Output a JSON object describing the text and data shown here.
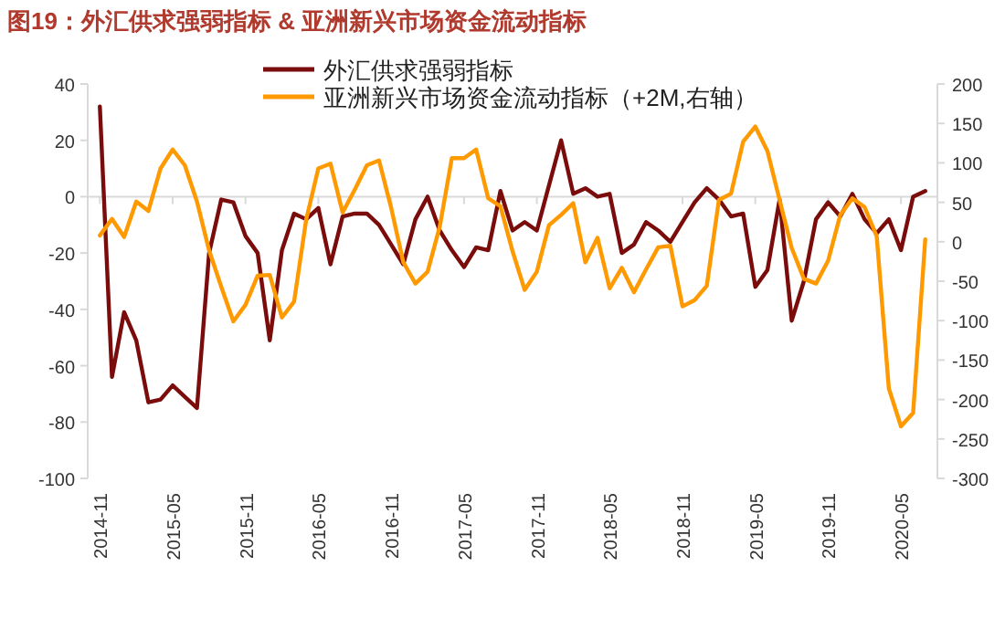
{
  "chart_data": {
    "type": "line",
    "title": "图19：外汇供求强弱指标 & 亚洲新兴市场资金流动指标",
    "x": [
      "2014-11",
      "2014-12",
      "2015-01",
      "2015-02",
      "2015-03",
      "2015-04",
      "2015-05",
      "2015-06",
      "2015-07",
      "2015-08",
      "2015-09",
      "2015-10",
      "2015-11",
      "2015-12",
      "2016-01",
      "2016-02",
      "2016-03",
      "2016-04",
      "2016-05",
      "2016-06",
      "2016-07",
      "2016-08",
      "2016-09",
      "2016-10",
      "2016-11",
      "2016-12",
      "2017-01",
      "2017-02",
      "2017-03",
      "2017-04",
      "2017-05",
      "2017-06",
      "2017-07",
      "2017-08",
      "2017-09",
      "2017-10",
      "2017-11",
      "2017-12",
      "2018-01",
      "2018-02",
      "2018-03",
      "2018-04",
      "2018-05",
      "2018-06",
      "2018-07",
      "2018-08",
      "2018-09",
      "2018-10",
      "2018-11",
      "2018-12",
      "2019-01",
      "2019-02",
      "2019-03",
      "2019-04",
      "2019-05",
      "2019-06",
      "2019-07",
      "2019-08",
      "2019-09",
      "2019-10",
      "2019-11",
      "2019-12",
      "2020-01",
      "2020-02",
      "2020-03",
      "2020-04",
      "2020-05",
      "2020-06",
      "2020-07"
    ],
    "series": [
      {
        "name": "外汇供求强弱指标",
        "color": "#7b0c0c",
        "values": [
          32,
          -64,
          -41,
          -51,
          -73,
          -72,
          -67,
          -71,
          -75,
          -20,
          -1,
          -2,
          -14,
          -20,
          -51,
          -19,
          -6,
          -8,
          -4,
          -24,
          -7,
          -6,
          -6,
          -10,
          -17,
          -24,
          -8,
          0,
          -12,
          -19,
          -25,
          -18,
          -19,
          2,
          -12,
          -9,
          -12,
          4,
          20,
          1,
          3,
          0,
          1,
          -20,
          -17,
          -9,
          -12,
          -16,
          -9,
          -2,
          3,
          -1,
          -7,
          -6,
          -32,
          -26,
          -1,
          -44,
          -30,
          -8,
          -2,
          -7,
          1,
          -8,
          -13,
          -8,
          -19,
          0,
          2
        ]
      },
      {
        "name": "亚洲新兴市场资金流动指标（+2M,右轴）",
        "color": "#ff9900",
        "axis": "y2",
        "values": [
          8,
          29,
          6,
          51,
          39,
          93,
          117,
          97,
          51,
          -11,
          -57,
          -101,
          -80,
          -43,
          -42,
          -96,
          -76,
          28,
          93,
          99,
          37,
          66,
          97,
          103,
          43,
          -26,
          -53,
          -38,
          19,
          106,
          106,
          117,
          55,
          45,
          -12,
          -61,
          -38,
          21,
          34,
          49,
          -26,
          5,
          -59,
          -33,
          -64,
          -35,
          -7,
          -5,
          -82,
          -74,
          -56,
          53,
          61,
          127,
          146,
          115,
          53,
          -8,
          -47,
          -53,
          -24,
          34,
          55,
          44,
          7,
          -186,
          -234,
          -217,
          3
        ]
      }
    ],
    "xlim": [
      "2014-10",
      "2020-08"
    ],
    "xticks": [
      "2014-11",
      "2015-05",
      "2015-11",
      "2016-05",
      "2016-11",
      "2017-05",
      "2017-11",
      "2018-05",
      "2018-11",
      "2019-05",
      "2019-11",
      "2020-05"
    ],
    "ylim": [
      -100,
      40
    ],
    "yticks": [
      -100,
      -80,
      -60,
      -40,
      -20,
      0,
      20,
      40
    ],
    "y2lim": [
      -300,
      200
    ],
    "y2ticks": [
      -300,
      -250,
      -200,
      -150,
      -100,
      -50,
      0,
      50,
      100,
      150,
      200
    ],
    "ref_lines": [
      {
        "axis": "y",
        "value": 0,
        "color": "#d9d9d9"
      }
    ],
    "legend": "top"
  }
}
